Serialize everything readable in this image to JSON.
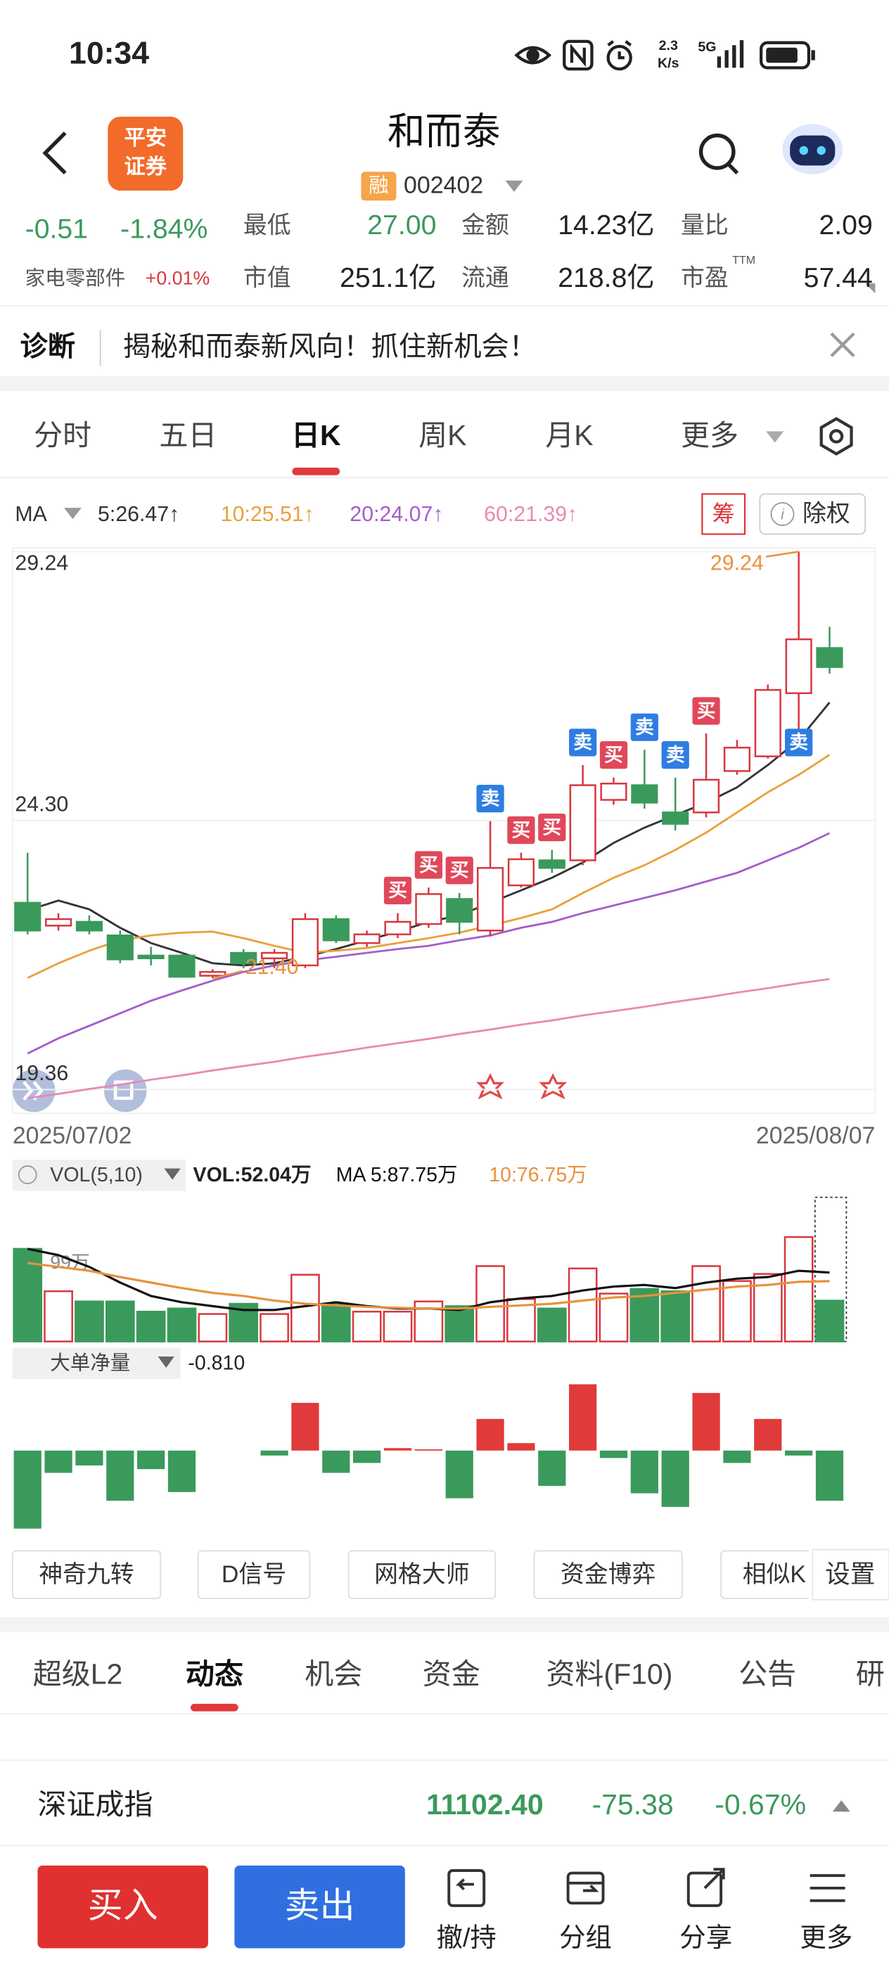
{
  "status_bar": {
    "time": "10:34",
    "speed": "2.3",
    "speed_unit": "K/s",
    "network": "5G"
  },
  "header": {
    "title": "和而泰",
    "logo_top": "平安",
    "logo_bottom": "证券",
    "badge": "融",
    "code": "002402"
  },
  "quote": {
    "change": "-0.51",
    "change_pct": "-1.84%",
    "low_label": "最低",
    "low": "27.00",
    "amount_label": "金额",
    "amount": "14.23亿",
    "ratio_label": "量比",
    "ratio": "2.09",
    "sector": "家电零部件",
    "sector_change": "+0.01%",
    "mcap_label": "市值",
    "mcap": "251.1亿",
    "float_label": "流通",
    "float": "218.8亿",
    "pe_label": "市盈",
    "pe_note": "TTM",
    "pe": "57.44"
  },
  "diagnosis": {
    "label": "诊断",
    "text": "揭秘和而泰新风向！抓住新机会！"
  },
  "period_tabs": {
    "items": [
      "分时",
      "五日",
      "日K",
      "周K",
      "月K",
      "更多"
    ],
    "active": 2
  },
  "ma_bar": {
    "label": "MA",
    "chip": "筹",
    "exright": "除权"
  },
  "chart_data": [
    {
      "type": "candlestick",
      "categories": [
        "2025/07/02",
        null,
        null,
        null,
        null,
        null,
        null,
        null,
        null,
        null,
        null,
        null,
        null,
        null,
        null,
        null,
        null,
        null,
        null,
        null,
        null,
        null,
        null,
        null,
        null,
        null,
        "2025/08/07"
      ],
      "open": [
        22.79,
        22.37,
        22.44,
        22.19,
        21.82,
        21.82,
        21.45,
        21.87,
        21.77,
        21.64,
        22.49,
        22.05,
        22.21,
        22.4,
        22.86,
        22.28,
        23.11,
        23.57,
        23.57,
        24.68,
        24.95,
        24.45,
        24.45,
        25.21,
        25.48,
        26.64,
        27.47
      ],
      "close": [
        22.28,
        22.49,
        22.28,
        21.75,
        21.77,
        21.43,
        21.52,
        21.68,
        21.87,
        22.49,
        22.1,
        22.21,
        22.44,
        22.95,
        22.44,
        23.43,
        23.59,
        23.43,
        24.95,
        24.98,
        24.63,
        24.24,
        25.05,
        25.64,
        26.7,
        27.63,
        27.12
      ],
      "high": [
        23.71,
        22.6,
        22.56,
        22.28,
        21.98,
        21.87,
        21.57,
        21.94,
        21.94,
        22.6,
        22.56,
        22.28,
        22.6,
        23.07,
        22.97,
        24.29,
        23.71,
        23.76,
        25.32,
        25.09,
        25.6,
        25.09,
        25.9,
        25.78,
        26.8,
        29.24,
        27.86
      ],
      "low": [
        22.21,
        22.28,
        22.21,
        21.68,
        21.64,
        21.42,
        21.4,
        21.59,
        21.59,
        21.59,
        22.05,
        21.98,
        22.14,
        22.33,
        22.21,
        22.17,
        23.07,
        23.34,
        23.48,
        24.59,
        24.52,
        24.12,
        24.36,
        25.14,
        25.44,
        25.55,
        27.0
      ],
      "up_color": "#d9363e",
      "down_color": "#3a9a5b",
      "series": [
        {
          "name": "5:26.47↑",
          "color": "#333333",
          "values": [
            22.65,
            22.83,
            22.67,
            22.33,
            22.05,
            21.87,
            21.68,
            21.64,
            21.68,
            21.8,
            21.94,
            22.1,
            22.26,
            22.44,
            22.56,
            22.79,
            23.02,
            23.25,
            23.53,
            23.89,
            24.17,
            24.4,
            24.63,
            24.91,
            25.32,
            25.78,
            26.47
          ]
        },
        {
          "name": "10:25.51↑",
          "color": "#e8a23c",
          "values": [
            21.41,
            21.68,
            21.91,
            22.1,
            22.19,
            22.24,
            22.26,
            22.14,
            22.0,
            21.87,
            21.91,
            21.96,
            22.05,
            22.14,
            22.24,
            22.37,
            22.51,
            22.67,
            22.97,
            23.25,
            23.48,
            23.76,
            24.08,
            24.45,
            24.82,
            25.14,
            25.51
          ]
        },
        {
          "name": "20:24.07↑",
          "color": "#a35fc9",
          "values": [
            20.02,
            20.3,
            20.53,
            20.76,
            20.99,
            21.18,
            21.36,
            21.52,
            21.64,
            21.73,
            21.8,
            21.87,
            21.94,
            22.0,
            22.1,
            22.19,
            22.33,
            22.44,
            22.6,
            22.74,
            22.88,
            23.02,
            23.18,
            23.34,
            23.57,
            23.8,
            24.07
          ]
        },
        {
          "name": "60:21.39↑",
          "color": "#e88ab5",
          "values": [
            19.2,
            19.28,
            19.37,
            19.45,
            19.54,
            19.62,
            19.71,
            19.79,
            19.87,
            19.96,
            20.04,
            20.13,
            20.21,
            20.29,
            20.38,
            20.46,
            20.55,
            20.63,
            20.72,
            20.8,
            20.88,
            20.97,
            21.05,
            21.14,
            21.22,
            21.31,
            21.39
          ]
        }
      ],
      "ylim": [
        19.36,
        29.24
      ],
      "yticks": [
        29.24,
        {
          "value": 24.3,
          "label": "24.30"
        },
        19.36
      ],
      "grid": true,
      "high_label": "29.24",
      "low_label": "21.40",
      "annotation_color": "#e8923c",
      "signals": {
        "buy_label": "买",
        "sell_label": "卖",
        "buy_color": "#e0485a",
        "sell_color": "#2f7de1",
        "buy": [
          12,
          13,
          14,
          16,
          17,
          19,
          22
        ],
        "sell": [
          15,
          18,
          20,
          21,
          25
        ]
      }
    },
    {
      "type": "bar",
      "indicator": "VOL(5,10)",
      "series": [
        {
          "name": "VOL:52.04万",
          "color": "#222222",
          "values": [
            118,
            64,
            51,
            51,
            38,
            42,
            35,
            48,
            35,
            85,
            48,
            38,
            38,
            51,
            45,
            96,
            54,
            42,
            93,
            61,
            67,
            64,
            96,
            77,
            86,
            133,
            52.04
          ]
        },
        {
          "name": "MA 5:87.75万",
          "color": "#111111",
          "values": [
            118,
            110,
            95,
            75,
            58,
            50,
            45,
            40,
            40,
            45,
            50,
            45,
            42,
            42,
            40,
            50,
            55,
            58,
            65,
            70,
            72,
            68,
            75,
            80,
            82,
            90,
            87.75
          ]
        },
        {
          "name": "10:76.75万",
          "color": "#e8923c",
          "values": [
            100,
            95,
            90,
            82,
            75,
            68,
            62,
            58,
            52,
            48,
            46,
            44,
            43,
            42,
            42,
            44,
            46,
            48,
            52,
            56,
            58,
            62,
            66,
            70,
            72,
            76,
            76.75
          ]
        }
      ],
      "ylim": [
        0,
        183.6
      ],
      "yticks": [
        {
          "value": 99,
          "label": "99万"
        }
      ]
    },
    {
      "type": "bar",
      "indicator": "大单净量",
      "up_color": "#e03a3a",
      "down_color": "#3a9a5b",
      "series": [
        {
          "name": "-0.810",
          "values": [
            -1.26,
            -0.36,
            -0.24,
            -0.81,
            -0.3,
            -0.67,
            0,
            0,
            -0.08,
            0.77,
            -0.36,
            -0.2,
            0.04,
            0.02,
            -0.77,
            0.51,
            0.12,
            -0.57,
            1.07,
            -0.12,
            -0.69,
            -0.91,
            0.93,
            -0.2,
            0.51,
            -0.08,
            -0.81
          ]
        }
      ]
    }
  ],
  "tools": {
    "items": [
      "神奇九转",
      "D信号",
      "网格大师",
      "资金博弈",
      "相似K"
    ],
    "settings": "设置"
  },
  "info_tabs": {
    "items": [
      "超级L2",
      "动态",
      "机会",
      "资金",
      "资料(F10)",
      "公告",
      "研"
    ],
    "active": 1
  },
  "index": {
    "name": "深证成指",
    "value": "11102.40",
    "change": "-75.38",
    "change_pct": "-0.67%"
  },
  "bottom_bar": {
    "buy": "买入",
    "sell": "卖出",
    "actions": [
      "撤/持",
      "分组",
      "分享",
      "更多"
    ]
  }
}
